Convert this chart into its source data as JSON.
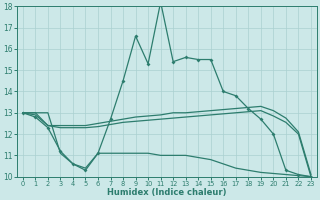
{
  "xlabel": "Humidex (Indice chaleur)",
  "x": [
    0,
    1,
    2,
    3,
    4,
    5,
    6,
    7,
    8,
    9,
    10,
    11,
    12,
    13,
    14,
    15,
    16,
    17,
    18,
    19,
    20,
    21,
    22,
    23
  ],
  "line_main": [
    13.0,
    12.8,
    12.3,
    11.2,
    10.6,
    10.3,
    11.1,
    12.7,
    14.5,
    16.6,
    15.3,
    18.2,
    15.4,
    15.6,
    15.5,
    15.5,
    14.0,
    13.8,
    13.2,
    12.7,
    12.0,
    10.3,
    10.1,
    10.0
  ],
  "line_upper": [
    13.0,
    13.0,
    12.4,
    12.4,
    12.4,
    12.4,
    12.5,
    12.6,
    12.7,
    12.8,
    12.85,
    12.9,
    13.0,
    13.0,
    13.05,
    13.1,
    13.15,
    13.2,
    13.25,
    13.3,
    13.1,
    12.75,
    12.1,
    10.1
  ],
  "line_mid": [
    13.0,
    12.9,
    12.4,
    12.3,
    12.3,
    12.3,
    12.35,
    12.45,
    12.55,
    12.6,
    12.65,
    12.7,
    12.75,
    12.8,
    12.85,
    12.9,
    12.95,
    13.0,
    13.05,
    13.1,
    12.85,
    12.55,
    12.0,
    10.0
  ],
  "line_lower": [
    13.0,
    13.0,
    13.0,
    11.1,
    10.6,
    10.4,
    11.1,
    11.1,
    11.1,
    11.1,
    11.1,
    11.0,
    11.0,
    11.0,
    10.9,
    10.8,
    10.6,
    10.4,
    10.3,
    10.2,
    10.15,
    10.1,
    10.05,
    10.0
  ],
  "color": "#2d7d6e",
  "bg_color": "#cce8e8",
  "grid_color": "#aad0d0",
  "ylim_min": 10,
  "ylim_max": 18,
  "yticks": [
    10,
    11,
    12,
    13,
    14,
    15,
    16,
    17,
    18
  ],
  "xticks": [
    0,
    1,
    2,
    3,
    4,
    5,
    6,
    7,
    8,
    9,
    10,
    11,
    12,
    13,
    14,
    15,
    16,
    17,
    18,
    19,
    20,
    21,
    22,
    23
  ]
}
